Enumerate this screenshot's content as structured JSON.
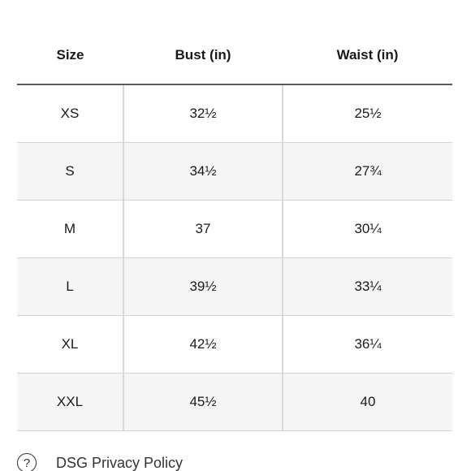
{
  "size_table": {
    "headers": [
      "Size",
      "Bust (in)",
      "Waist (in)"
    ],
    "rows": [
      [
        "XS",
        "32½",
        "25½"
      ],
      [
        "S",
        "34½",
        "27¾"
      ],
      [
        "M",
        "37",
        "30¼"
      ],
      [
        "L",
        "39½",
        "33¼"
      ],
      [
        "XL",
        "42½",
        "36¼"
      ],
      [
        "XXL",
        "45½",
        "40"
      ]
    ]
  },
  "footer": {
    "help_icon_glyph": "?",
    "privacy_label": "DSG Privacy Policy"
  }
}
